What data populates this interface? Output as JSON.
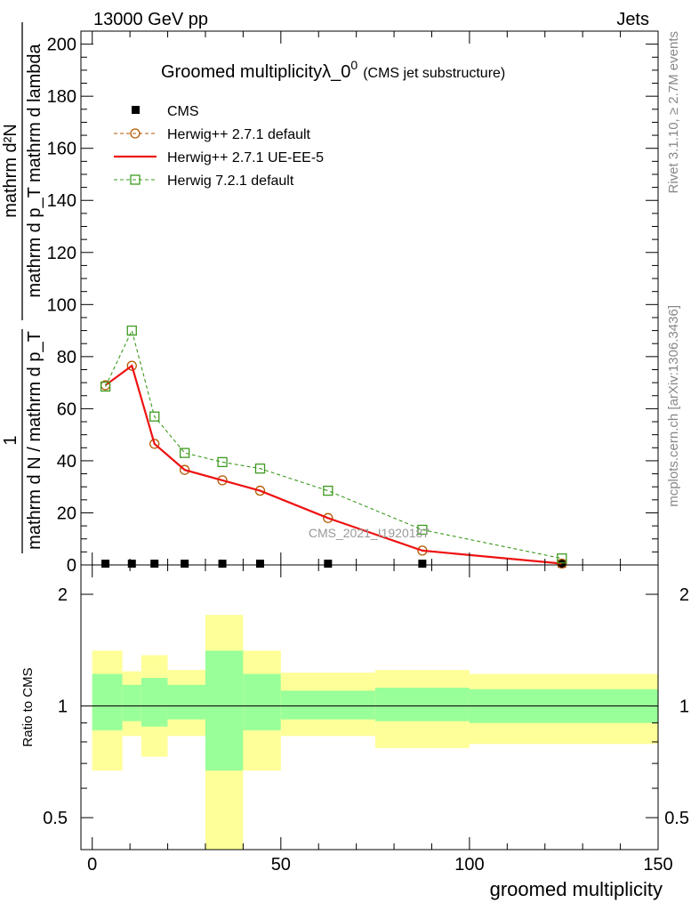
{
  "header": {
    "left": "13000 GeV pp",
    "right": "Jets"
  },
  "side_text": {
    "upper": "Rivet 3.1.10, ≥ 2.7M events",
    "lower": "mcplots.cern.ch [arXiv:1306.3436]"
  },
  "watermark": "CMS_2021_I1920187",
  "chart_data": [
    {
      "type": "line",
      "title": "Groomed multiplicityλ_0",
      "title_sup": "0",
      "subtitle": "(CMS jet substructure)",
      "ylabel_numerator": "mathrm d²N",
      "ylabel_denominator": "mathrm d p_T mathrm d lambda",
      "ylabel_prefix_num": "1",
      "ylabel_prefix_den": "mathrm d N / mathrm d p_T",
      "ylim": [
        0,
        205
      ],
      "xlim": [
        -3,
        150
      ],
      "yticks": [
        "0",
        "20",
        "40",
        "60",
        "80",
        "100",
        "120",
        "140",
        "160",
        "180",
        "200"
      ],
      "legend_position": "top-left",
      "data_x": [
        3.5,
        10.5,
        16.5,
        24.5,
        34.5,
        44.5,
        62.5,
        87.5,
        124.5
      ],
      "data_y": [
        0.3,
        0.3,
        0.3,
        0.3,
        0.3,
        0.3,
        0.3,
        0.3,
        0.3
      ],
      "series": [
        {
          "name": "CMS",
          "color": "#000000",
          "marker": "square-filled",
          "x": [
            3.5,
            10.5,
            16.5,
            24.5,
            34.5,
            44.5,
            62.5,
            87.5,
            124.5
          ],
          "values": [
            0.3,
            0.3,
            0.3,
            0.3,
            0.3,
            0.3,
            0.3,
            0.3,
            0.3
          ]
        },
        {
          "name": "Herwig++ 2.7.1 default",
          "color": "#b35900",
          "marker": "circle-open",
          "dash": "dashed",
          "x": [
            3.5,
            10.5,
            16.5,
            24.5,
            34.5,
            44.5,
            62.5,
            87.5,
            124.5
          ],
          "values": [
            69,
            76.5,
            46.5,
            36.5,
            32.5,
            28.5,
            18,
            5.5,
            0.5
          ]
        },
        {
          "name": "Herwig++ 2.7.1 UE-EE-5",
          "color": "#ee1111",
          "marker": "none",
          "dash": "solid",
          "x": [
            3.5,
            10.5,
            16.5,
            24.5,
            34.5,
            44.5,
            62.5,
            87.5,
            124.5
          ],
          "values": [
            69,
            76.5,
            46.5,
            36.5,
            32.5,
            28.5,
            18,
            5.5,
            0.5
          ]
        },
        {
          "name": "Herwig 7.2.1 default",
          "color": "#3d9a1f",
          "marker": "square-open",
          "dash": "dashed",
          "x": [
            3.5,
            10.5,
            16.5,
            24.5,
            34.5,
            44.5,
            62.5,
            87.5,
            124.5
          ],
          "values": [
            68.5,
            90,
            57,
            43,
            39.5,
            37,
            28.5,
            13.5,
            2.5
          ]
        }
      ]
    },
    {
      "type": "area",
      "ylabel": "Ratio to CMS",
      "xlabel": "groomed multiplicity",
      "xlim": [
        -3,
        150
      ],
      "ylim": [
        0.41,
        2.4
      ],
      "log_scale": true,
      "xticks": [
        "0",
        "50",
        "100",
        "150"
      ],
      "yticks": [
        "0.5",
        "1",
        "2"
      ],
      "reference_line": 1,
      "bins": [
        {
          "lo": 0,
          "hi": 8,
          "stat_lo": 0.86,
          "stat_hi": 1.22,
          "tot_lo": 0.67,
          "tot_hi": 1.41
        },
        {
          "lo": 8,
          "hi": 13,
          "stat_lo": 0.91,
          "stat_hi": 1.14,
          "tot_lo": 0.83,
          "tot_hi": 1.24
        },
        {
          "lo": 13,
          "hi": 20,
          "stat_lo": 0.88,
          "stat_hi": 1.19,
          "tot_lo": 0.73,
          "tot_hi": 1.37
        },
        {
          "lo": 20,
          "hi": 30,
          "stat_lo": 0.92,
          "stat_hi": 1.14,
          "tot_lo": 0.83,
          "tot_hi": 1.25
        },
        {
          "lo": 30,
          "hi": 40,
          "stat_lo": 0.67,
          "stat_hi": 1.41,
          "tot_lo": 0.41,
          "tot_hi": 1.76
        },
        {
          "lo": 40,
          "hi": 50,
          "stat_lo": 0.86,
          "stat_hi": 1.22,
          "tot_lo": 0.67,
          "tot_hi": 1.41
        },
        {
          "lo": 50,
          "hi": 75,
          "stat_lo": 0.92,
          "stat_hi": 1.1,
          "tot_lo": 0.83,
          "tot_hi": 1.23
        },
        {
          "lo": 75,
          "hi": 100,
          "stat_lo": 0.91,
          "stat_hi": 1.12,
          "tot_lo": 0.77,
          "tot_hi": 1.25
        },
        {
          "lo": 100,
          "hi": 150,
          "stat_lo": 0.9,
          "stat_hi": 1.11,
          "tot_lo": 0.79,
          "tot_hi": 1.22
        }
      ],
      "colors": {
        "stat": "#99ff99",
        "total": "#ffff99"
      }
    }
  ]
}
